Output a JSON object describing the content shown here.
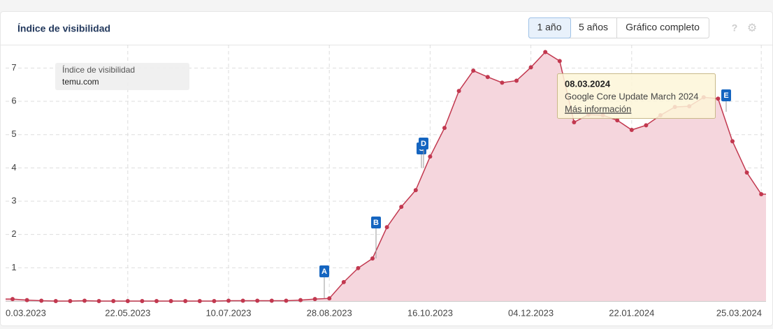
{
  "header": {
    "title": "Índice de visibilidad",
    "buttons": [
      "1 año",
      "5 años",
      "Gráfico completo"
    ],
    "icons": [
      "?",
      "⚙"
    ]
  },
  "chart_data": {
    "type": "area",
    "legend": {
      "title": "Índice de visibilidad",
      "domain": "temu.com"
    },
    "categories": [
      "0.03.2023",
      null,
      null,
      null,
      null,
      null,
      null,
      null,
      "22.05.2023",
      null,
      null,
      null,
      null,
      null,
      null,
      "10.07.2023",
      null,
      null,
      null,
      null,
      null,
      null,
      "28.08.2023",
      null,
      null,
      null,
      null,
      null,
      null,
      "16.10.2023",
      null,
      null,
      null,
      null,
      null,
      null,
      "04.12.2023",
      null,
      null,
      null,
      null,
      null,
      null,
      "22.01.2024",
      null,
      null,
      null,
      null,
      null,
      null,
      null,
      null,
      "25.03.2024"
    ],
    "series": [
      {
        "name": "temu.com",
        "color": "#c2384f",
        "fill": "#f5d6dd",
        "values": [
          0.06,
          0.03,
          0.01,
          0,
          0,
          0.01,
          0,
          0,
          0,
          0,
          0,
          0,
          0,
          0,
          0,
          0.01,
          0.01,
          0.01,
          0.01,
          0.01,
          0.03,
          0.06,
          0.08,
          0.57,
          0.99,
          1.28,
          2.22,
          2.83,
          3.33,
          4.34,
          5.2,
          6.31,
          6.92,
          6.73,
          6.56,
          6.62,
          7.02,
          7.48,
          7.21,
          5.37,
          5.6,
          5.58,
          5.43,
          5.14,
          5.28,
          5.58,
          5.83,
          5.85,
          6.12,
          6.08,
          4.8,
          3.86,
          3.21
        ]
      }
    ],
    "ylim": [
      0,
      7.7
    ],
    "yticks": [
      1,
      2,
      3,
      4,
      5,
      6,
      7
    ],
    "grid": true,
    "events": [
      "A",
      "B",
      "C",
      "D",
      "E"
    ],
    "tooltip": {
      "date": "08.03.2024",
      "text": "Google Core Update March 2024",
      "link": "Más información"
    }
  }
}
